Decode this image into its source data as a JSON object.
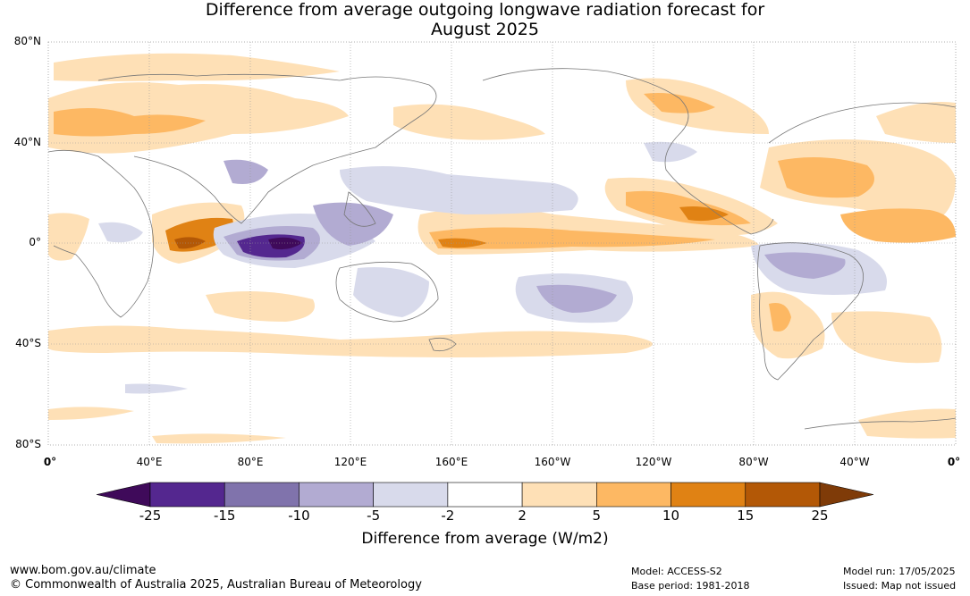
{
  "title": {
    "line1": "Difference from average outgoing longwave radiation forecast for",
    "line2": "August 2025"
  },
  "axes": {
    "lat_labels": [
      "80°N",
      "40°N",
      "0°",
      "40°S",
      "80°S"
    ],
    "lon_labels": [
      "0°",
      "40°E",
      "80°E",
      "120°E",
      "160°E",
      "160°W",
      "120°W",
      "80°W",
      "40°W",
      "0°"
    ]
  },
  "colorbar": {
    "label": "Difference from average (W/m2)",
    "ticks": [
      "-25",
      "-15",
      "-10",
      "-5",
      "-2",
      "2",
      "5",
      "10",
      "15",
      "25"
    ],
    "colors": [
      "#3f0a5a",
      "#54278f",
      "#8073ac",
      "#b2abd2",
      "#d8daeb",
      "#ffffff",
      "#fee0b6",
      "#fdb863",
      "#e08214",
      "#b35806",
      "#7f3b08"
    ]
  },
  "footer": {
    "url": "www.bom.gov.au/climate",
    "copyright": "© Commonwealth of Australia 2025, Australian Bureau of Meteorology",
    "model": "Model: ACCESS-S2",
    "base_period": "Base period: 1981-2018",
    "model_run": "Model run: 17/05/2025",
    "issued": "Issued: Map not issued"
  }
}
